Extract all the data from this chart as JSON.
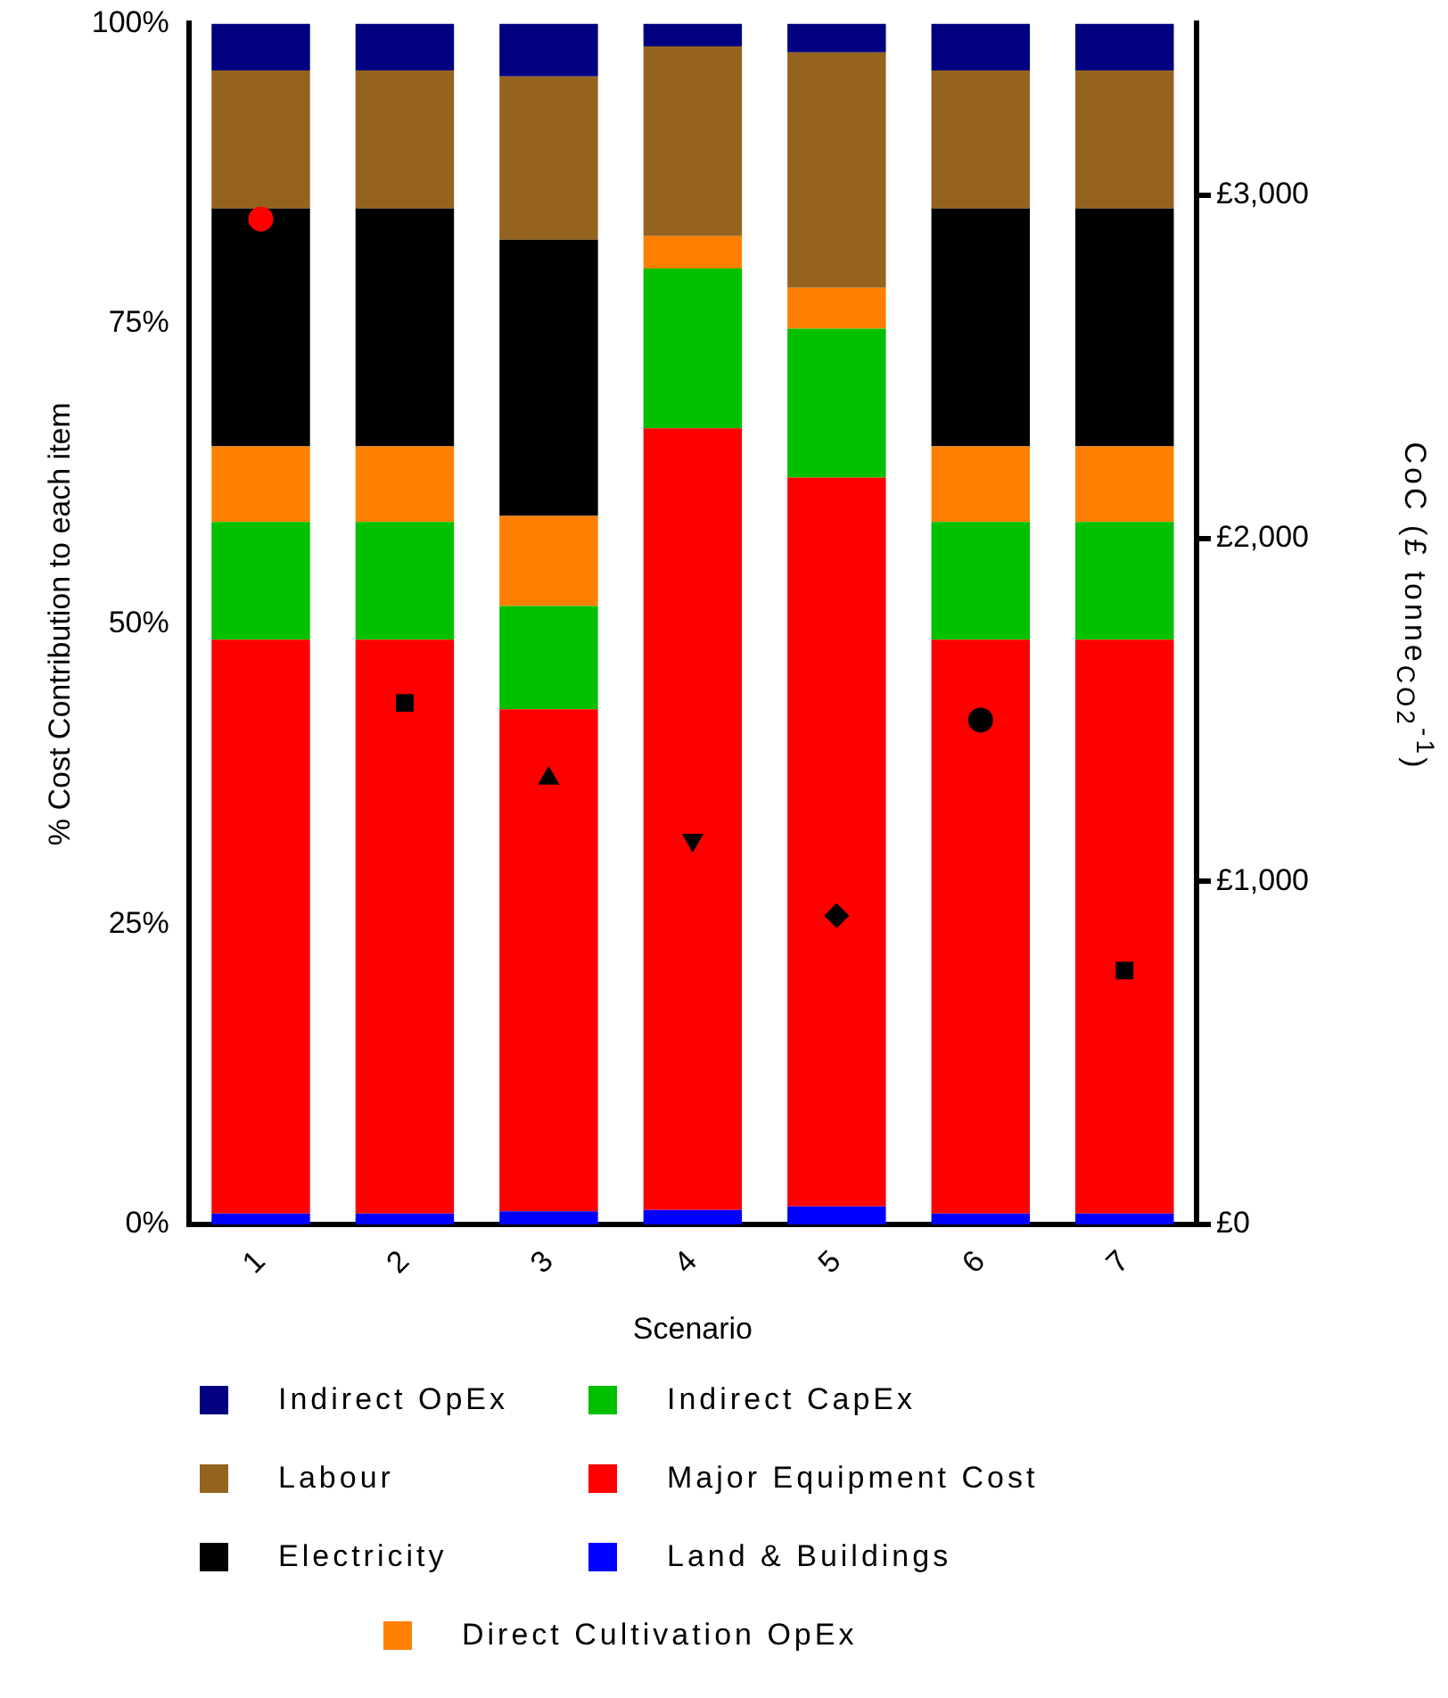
{
  "chart_data": {
    "type": "bar",
    "stacked": true,
    "xlabel": "Scenario",
    "ylabel": "% Cost Contribution to each item",
    "y2label": "CoC (£ tonne$_{CO2}$$^{-1}$)",
    "categories": [
      "1",
      "2",
      "3",
      "4",
      "5",
      "6",
      "7"
    ],
    "series": [
      {
        "name": "Land & Buildings",
        "color": "#0000ff",
        "values": [
          0.9,
          0.9,
          1.1,
          1.2,
          1.5,
          0.9,
          0.9
        ]
      },
      {
        "name": "Major Equipment Cost",
        "color": "#ff0000",
        "values": [
          47.8,
          47.8,
          41.8,
          65.1,
          60.7,
          47.8,
          47.8
        ]
      },
      {
        "name": "Indirect CapEx",
        "color": "#00c000",
        "values": [
          9.8,
          9.8,
          8.6,
          13.3,
          12.4,
          9.8,
          9.8
        ]
      },
      {
        "name": "Direct Cultivation OpEx",
        "color": "#ff8000",
        "values": [
          6.3,
          6.3,
          7.5,
          2.7,
          3.4,
          6.3,
          6.3
        ]
      },
      {
        "name": "Electricity",
        "color": "#000000",
        "values": [
          19.8,
          19.8,
          23.0,
          0,
          0,
          19.8,
          19.8
        ]
      },
      {
        "name": "Labour",
        "color": "#956320",
        "values": [
          11.5,
          11.5,
          13.6,
          15.8,
          19.6,
          11.5,
          11.5
        ]
      },
      {
        "name": "Indirect OpEx",
        "color": "#000080",
        "values": [
          3.9,
          3.9,
          4.4,
          1.9,
          2.4,
          3.9,
          3.9
        ]
      },
      {
        "type": "scatter",
        "axis": "y2",
        "marker": "circle",
        "color": "#ff0000",
        "x": [
          "1"
        ],
        "values": [
          2930
        ]
      },
      {
        "type": "scatter",
        "axis": "y2",
        "marker": "square",
        "color": "#000000",
        "x": [
          "2"
        ],
        "values": [
          1520
        ]
      },
      {
        "type": "scatter",
        "axis": "y2",
        "marker": "triangle",
        "color": "#000000",
        "x": [
          "3"
        ],
        "values": [
          1300
        ]
      },
      {
        "type": "scatter",
        "axis": "y2",
        "marker": "triangle_down",
        "color": "#000000",
        "x": [
          "4"
        ],
        "values": [
          1120
        ]
      },
      {
        "type": "scatter",
        "axis": "y2",
        "marker": "diamond",
        "color": "#000000",
        "x": [
          "5"
        ],
        "values": [
          900
        ]
      },
      {
        "type": "scatter",
        "axis": "y2",
        "marker": "circle",
        "color": "#000000",
        "x": [
          "6"
        ],
        "values": [
          1470
        ]
      },
      {
        "type": "scatter",
        "axis": "y2",
        "marker": "square",
        "color": "#000000",
        "x": [
          "7"
        ],
        "values": [
          740
        ]
      }
    ],
    "ylim": [
      0,
      100
    ],
    "yticks": [
      {
        "value": 0,
        "label": "0%"
      },
      {
        "value": 25,
        "label": "25%"
      },
      {
        "value": 50,
        "label": "50%"
      },
      {
        "value": 75,
        "label": "75%"
      },
      {
        "value": 100,
        "label": "100%"
      }
    ],
    "y2lim": [
      0,
      3500
    ],
    "y2ticks": [
      {
        "value": 0,
        "label": "£0"
      },
      {
        "value": 1000,
        "label": "£1,000"
      },
      {
        "value": 2000,
        "label": "£2,000"
      },
      {
        "value": 3000,
        "label": "£3,000"
      }
    ],
    "grid": false,
    "legend": "bottom"
  }
}
